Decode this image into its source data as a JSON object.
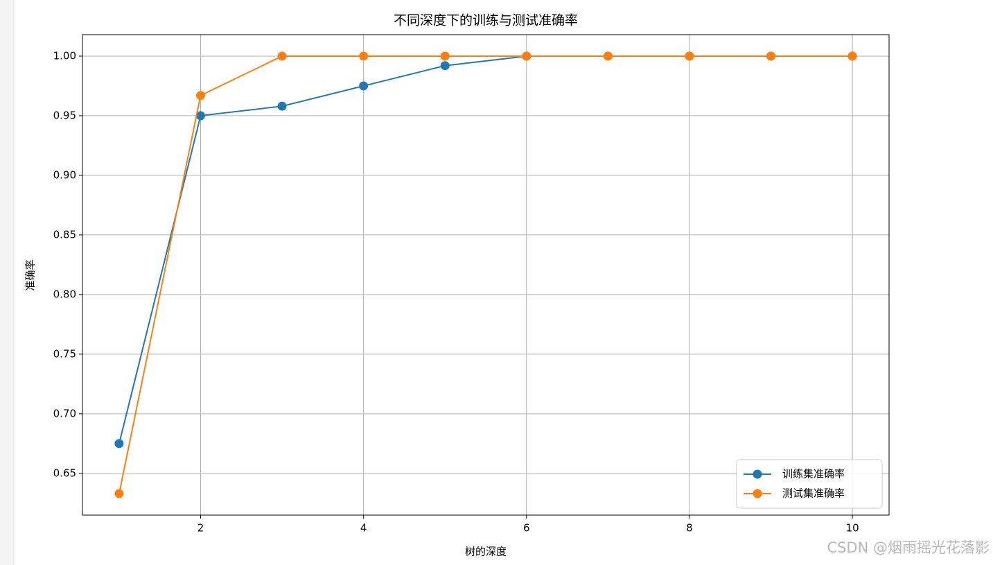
{
  "chart_data": {
    "type": "line",
    "title": "不同深度下的训练与测试准确率",
    "x_label": "树的深度",
    "y_label": "准确率",
    "x": [
      1,
      2,
      3,
      4,
      5,
      6,
      7,
      8,
      9,
      10
    ],
    "series": [
      {
        "name": "训练集准确率",
        "color": "#1f77b4",
        "values": [
          0.675,
          0.95,
          0.958,
          0.975,
          0.992,
          1.0,
          1.0,
          1.0,
          1.0,
          1.0
        ]
      },
      {
        "name": "测试集准确率",
        "color": "#ff7f0e",
        "values": [
          0.633,
          0.967,
          1.0,
          1.0,
          1.0,
          1.0,
          1.0,
          1.0,
          1.0,
          1.0
        ]
      }
    ],
    "xlim": [
      0.55,
      10.45
    ],
    "xticks": [
      2,
      4,
      6,
      8,
      10
    ],
    "ylim": [
      0.615,
      1.018
    ],
    "yticks": [
      0.65,
      {
        "value": 0.7,
        "label": "0.70"
      },
      0.75,
      {
        "value": 0.8,
        "label": "0.80"
      },
      0.85,
      {
        "value": 0.9,
        "label": "0.90"
      },
      0.95,
      {
        "value": 1.0,
        "label": "1.00"
      }
    ],
    "grid": true,
    "legend": "lower right",
    "watermark": "CSDN @烟雨摇光花落影"
  }
}
